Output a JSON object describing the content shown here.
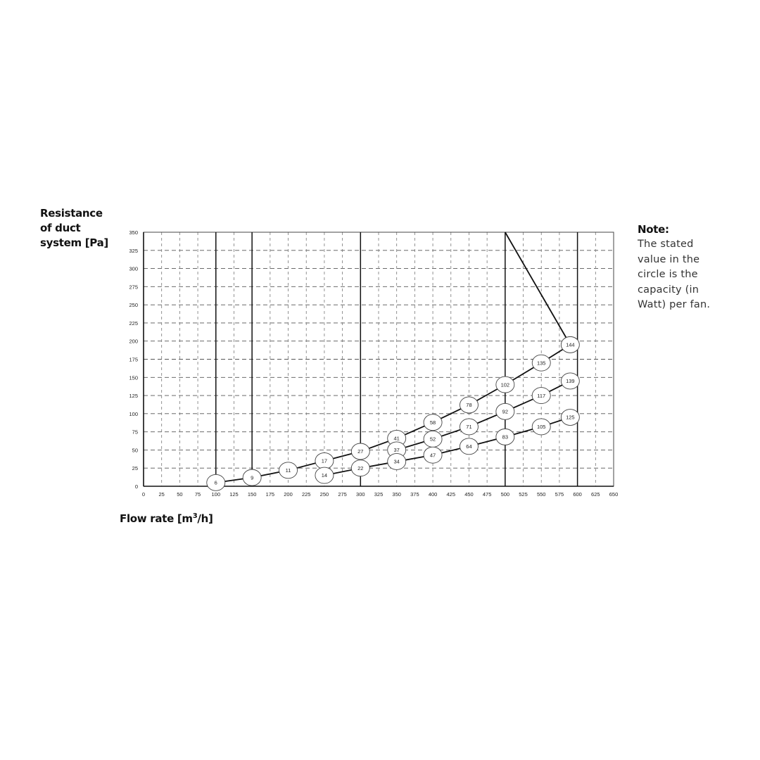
{
  "chart_data": {
    "type": "line",
    "ylabel": "Resistance\nof duct\nsystem [Pa]",
    "xlabel": "Flow rate [m",
    "xlabel_sup": "3",
    "xlabel_tail": "/h]",
    "xlim": [
      0,
      650
    ],
    "ylim": [
      0,
      350
    ],
    "x_ticks": [
      0,
      25,
      50,
      75,
      100,
      125,
      150,
      175,
      200,
      225,
      250,
      275,
      300,
      325,
      350,
      375,
      400,
      425,
      450,
      475,
      500,
      525,
      550,
      575,
      600,
      625,
      650
    ],
    "y_ticks": [
      0,
      25,
      50,
      75,
      100,
      125,
      150,
      175,
      200,
      225,
      250,
      275,
      300,
      325,
      350
    ],
    "grid": true,
    "grid_style": "dashed",
    "solid_verticals": [
      100,
      150,
      300,
      500,
      600
    ],
    "limit_line": {
      "x": [
        500,
        590
      ],
      "y": [
        350,
        195
      ]
    },
    "series": [
      {
        "x": [
          100,
          150,
          200,
          250,
          300,
          350,
          400,
          450,
          500,
          550,
          590
        ],
        "y": [
          5,
          12,
          22,
          35,
          48,
          66,
          88,
          112,
          140,
          170,
          195
        ],
        "labels": [
          "6",
          "9",
          "11",
          "17",
          "27",
          "41",
          "58",
          "78",
          "102",
          "135",
          "144"
        ]
      },
      {
        "x": [
          350,
          400,
          450,
          500,
          550,
          590
        ],
        "y": [
          50,
          65,
          82,
          103,
          125,
          145
        ],
        "labels": [
          "37",
          "52",
          "71",
          "92",
          "117",
          "139"
        ]
      },
      {
        "x": [
          250,
          300,
          350,
          400,
          450,
          500,
          550,
          590
        ],
        "y": [
          15,
          25,
          34,
          43,
          55,
          68,
          82,
          95
        ],
        "labels": [
          "14",
          "22",
          "34",
          "47",
          "64",
          "83",
          "105",
          "125"
        ]
      }
    ]
  },
  "note": {
    "title": "Note:",
    "text": "The stated value in the circle is the capacity (in Watt) per fan."
  }
}
